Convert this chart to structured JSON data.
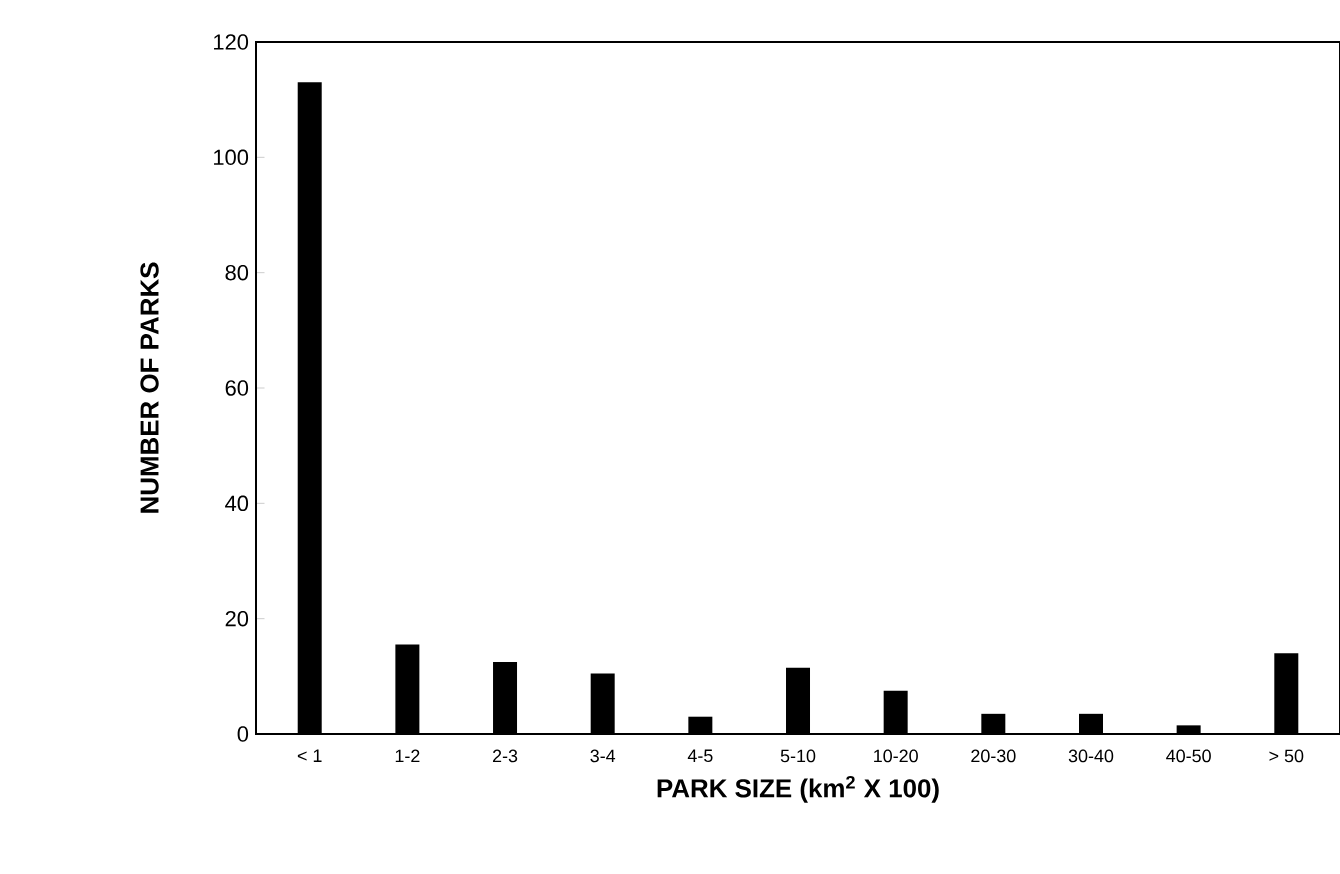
{
  "chart_data": {
    "type": "bar",
    "categories": [
      "< 1",
      "1-2",
      "2-3",
      "3-4",
      "4-5",
      "5-10",
      "10-20",
      "20-30",
      "30-40",
      "40-50",
      "> 50"
    ],
    "values": [
      113,
      15.5,
      12.5,
      10.5,
      3,
      11.5,
      7.5,
      3.5,
      3.5,
      1.5,
      14
    ],
    "color": "#000000",
    "xlabel": "PARK SIZE (km$^{2}$ X 100)",
    "ylabel": "NUMBER OF PARKS",
    "ylim": [
      0,
      120
    ],
    "yticks": [
      0,
      20,
      40,
      60,
      80,
      100,
      120
    ]
  }
}
